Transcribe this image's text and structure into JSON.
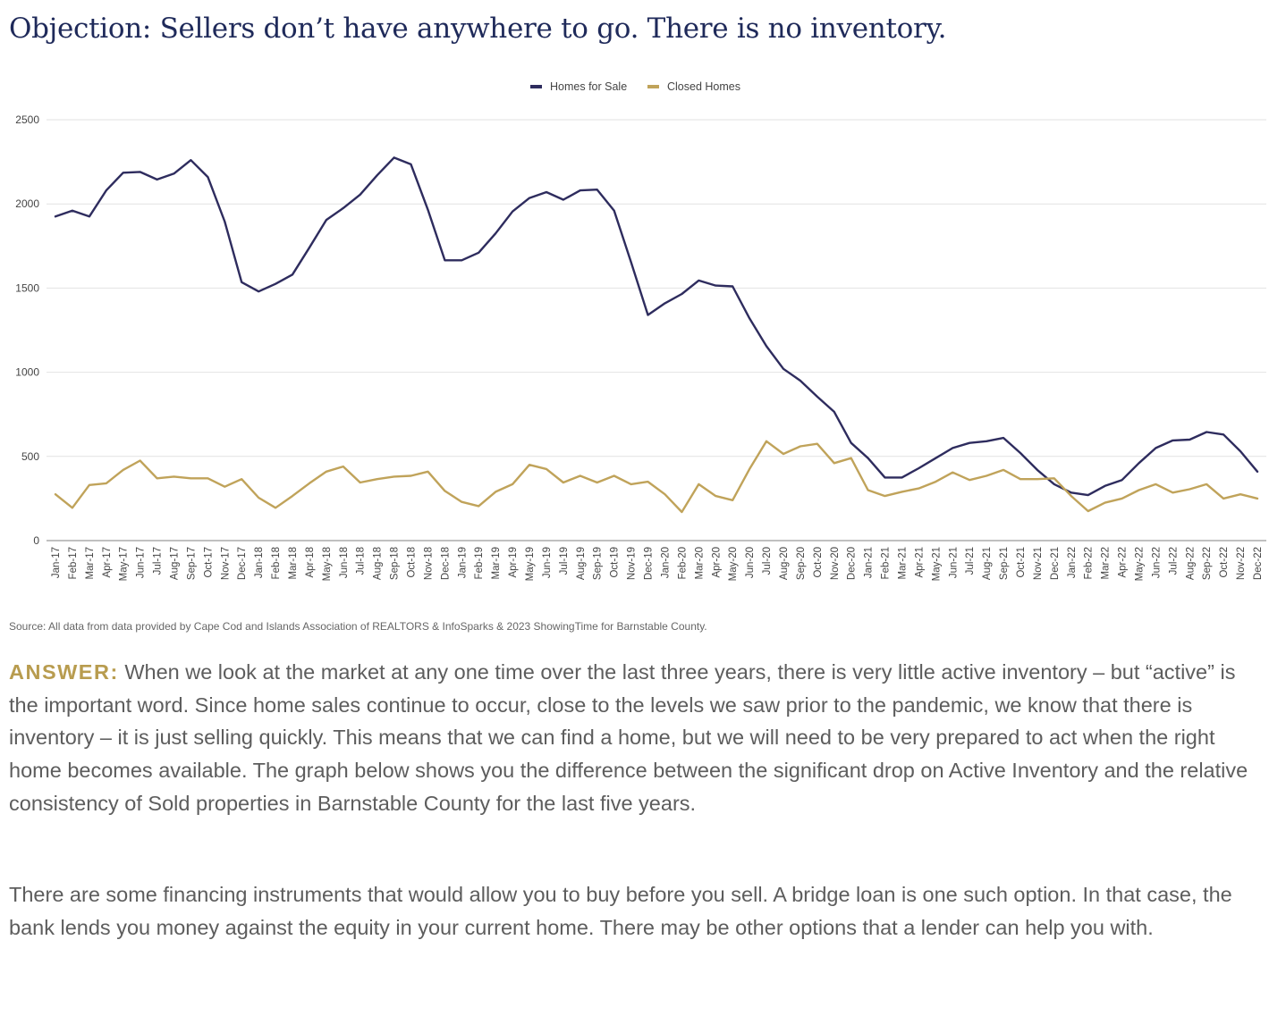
{
  "title": "Objection: Sellers don’t have anywhere to go. There is no inventory.",
  "source": "Source: All data from data provided by Cape Cod and Islands Association of REALTORS & InfoSparks & 2023 ShowingTime for Barnstable County.",
  "answer_label": "ANSWER:",
  "answer_text": "When we look at the market at any one time over the last three years, there is very little active inventory – but “active” is the important word. Since home sales continue to occur, close to the levels we saw prior to the pandemic, we know that there is inventory – it is just selling quickly. This means that we can find a home, but we will need to be very prepared to act when the right home becomes available. The graph below shows you the difference between the significant drop on Active Inventory and the relative consistency of Sold properties in Barnstable County for the last five years.",
  "paragraph2": "There are some financing instruments that would allow you to buy before you sell. A bridge loan is one such option. In that case, the bank lends you money against the equity in your current home. There may be other options that a lender can help you with.",
  "chart_data": {
    "type": "line",
    "legend_position": "top-center",
    "grid": true,
    "ylim": [
      0,
      2500
    ],
    "yticks": [
      "0",
      "500",
      "1000",
      "1500",
      "2000",
      "2500"
    ],
    "categories": [
      "Jan-17",
      "Feb-17",
      "Mar-17",
      "Apr-17",
      "May-17",
      "Jun-17",
      "Jul-17",
      "Aug-17",
      "Sep-17",
      "Oct-17",
      "Nov-17",
      "Dec-17",
      "Jan-18",
      "Feb-18",
      "Mar-18",
      "Apr-18",
      "May-18",
      "Jun-18",
      "Jul-18",
      "Aug-18",
      "Sep-18",
      "Oct-18",
      "Nov-18",
      "Dec-18",
      "Jan-19",
      "Feb-19",
      "Mar-19",
      "Apr-19",
      "May-19",
      "Jun-19",
      "Jul-19",
      "Aug-19",
      "Sep-19",
      "Oct-19",
      "Nov-19",
      "Dec-19",
      "Jan-20",
      "Feb-20",
      "Mar-20",
      "Apr-20",
      "May-20",
      "Jun-20",
      "Jul-20",
      "Aug-20",
      "Sep-20",
      "Oct-20",
      "Nov-20",
      "Dec-20",
      "Jan-21",
      "Feb-21",
      "Mar-21",
      "Apr-21",
      "May-21",
      "Jun-21",
      "Jul-21",
      "Aug-21",
      "Sep-21",
      "Oct-21",
      "Nov-21",
      "Dec-21",
      "Jan-22",
      "Feb-22",
      "Mar-22",
      "Apr-22",
      "May-22",
      "Jun-22",
      "Jul-22",
      "Aug-22",
      "Sep-22",
      "Oct-22",
      "Nov-22",
      "Dec-22"
    ],
    "series": [
      {
        "name": "Homes for Sale",
        "color": "#2e2c5e",
        "values": [
          1925,
          1960,
          1925,
          2080,
          2185,
          2190,
          2145,
          2180,
          2260,
          2160,
          1895,
          1535,
          1480,
          1525,
          1580,
          1740,
          1905,
          1975,
          2055,
          2170,
          2275,
          2235,
          1965,
          1665,
          1665,
          1710,
          1825,
          1955,
          2035,
          2070,
          2025,
          2080,
          2085,
          1960,
          1655,
          1340,
          1410,
          1465,
          1545,
          1515,
          1510,
          1320,
          1155,
          1020,
          950,
          855,
          765,
          580,
          490,
          375,
          375,
          430,
          490,
          550,
          580,
          590,
          610,
          520,
          420,
          335,
          285,
          270,
          325,
          360,
          460,
          550,
          595,
          600,
          645,
          630,
          530,
          410
        ]
      },
      {
        "name": "Closed Homes",
        "color": "#c0a35a",
        "values": [
          275,
          195,
          330,
          340,
          420,
          475,
          370,
          380,
          370,
          370,
          320,
          365,
          255,
          195,
          265,
          340,
          410,
          440,
          345,
          365,
          380,
          385,
          410,
          295,
          230,
          205,
          290,
          335,
          450,
          425,
          345,
          385,
          345,
          385,
          335,
          350,
          275,
          170,
          335,
          265,
          240,
          425,
          590,
          515,
          560,
          575,
          460,
          490,
          300,
          265,
          290,
          310,
          350,
          405,
          360,
          385,
          420,
          365,
          365,
          370,
          265,
          175,
          225,
          250,
          300,
          335,
          285,
          305,
          335,
          250,
          275,
          250
        ]
      }
    ]
  }
}
